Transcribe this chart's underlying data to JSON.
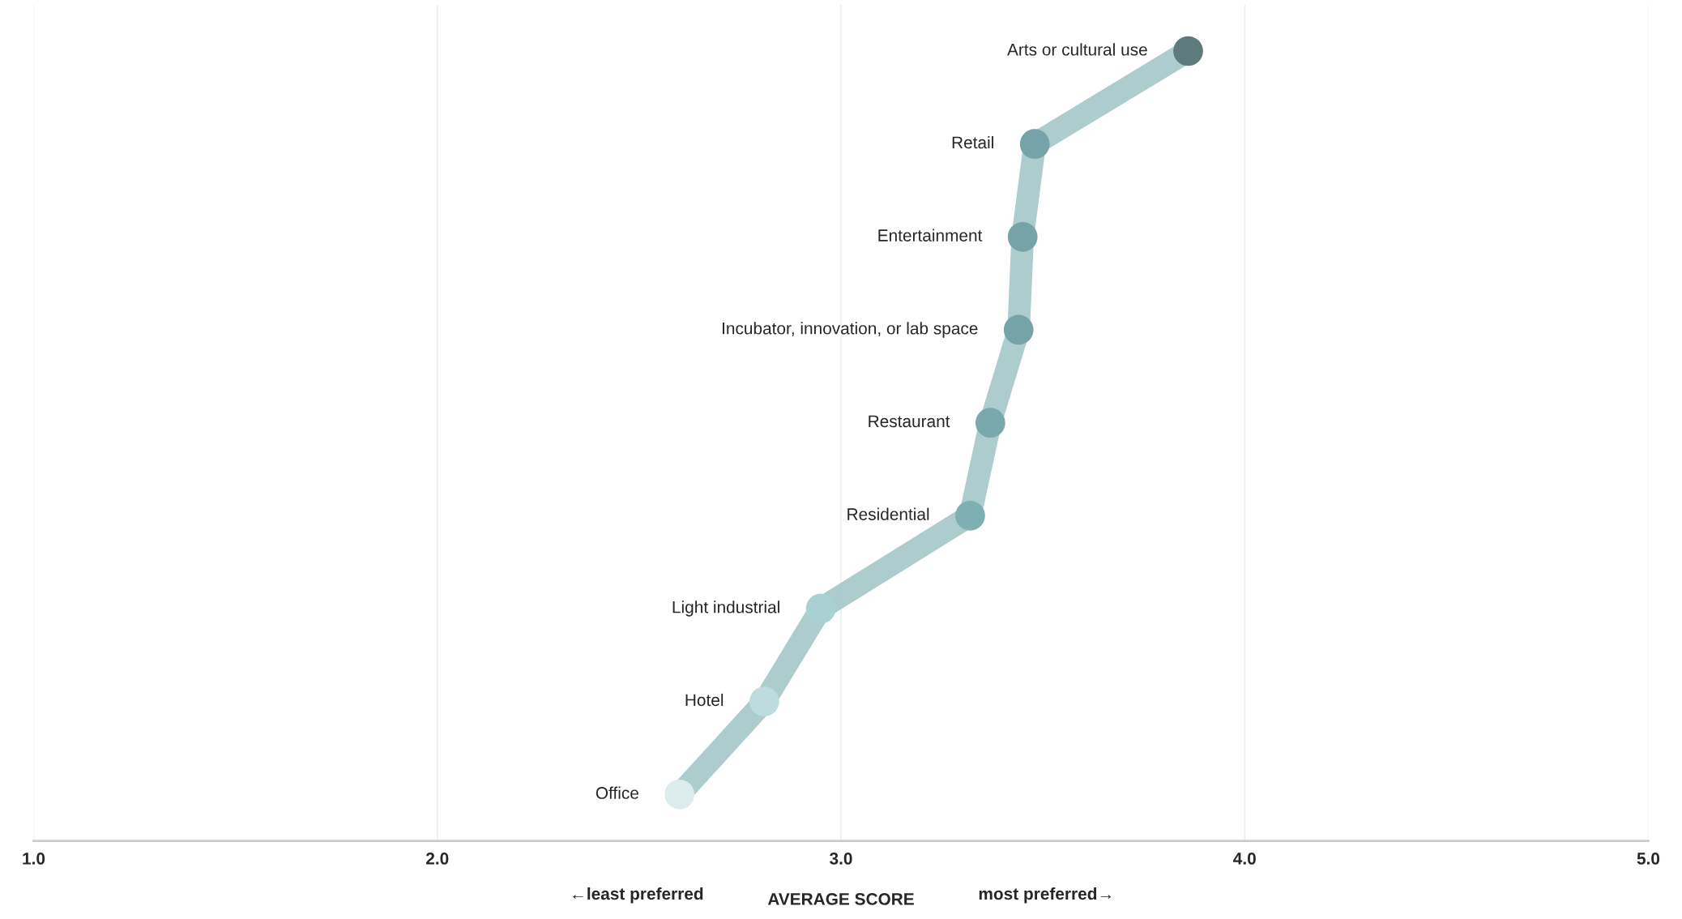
{
  "chart_data": {
    "type": "line",
    "orientation": "horizontal",
    "categories": [
      "Arts or cultural use",
      "Retail",
      "Entertainment",
      "Incubator, innovation, or lab space",
      "Restaurant",
      "Residential",
      "Light industrial",
      "Hotel",
      "Office"
    ],
    "series": [
      {
        "color": "#a3c6c8",
        "values": [
          3.86,
          3.48,
          3.45,
          3.44,
          3.37,
          3.32,
          2.95,
          2.81,
          2.6
        ],
        "colors": [
          "#5f7a7c",
          "#76a3a8",
          "#76a3a8",
          "#76a3a8",
          "#79a8ad",
          "#7eafb3",
          "#a9d1d3",
          "#bcdcdd",
          "#dcebeb"
        ]
      }
    ],
    "xlim": [
      1,
      5
    ],
    "xticks": [
      {
        "value": 1,
        "label": "1.0"
      },
      {
        "value": 2,
        "label": "2.0"
      },
      {
        "value": 3,
        "label": "3.0"
      },
      {
        "value": 4,
        "label": "4.0"
      },
      {
        "value": 5,
        "label": "5.0"
      }
    ],
    "xlabel": "AVERAGE SCORE",
    "annotations": [
      "←least preferred",
      "most preferred→"
    ],
    "grid": "x",
    "marker": "circle",
    "line_style": "solid",
    "tick_labels": "x"
  }
}
